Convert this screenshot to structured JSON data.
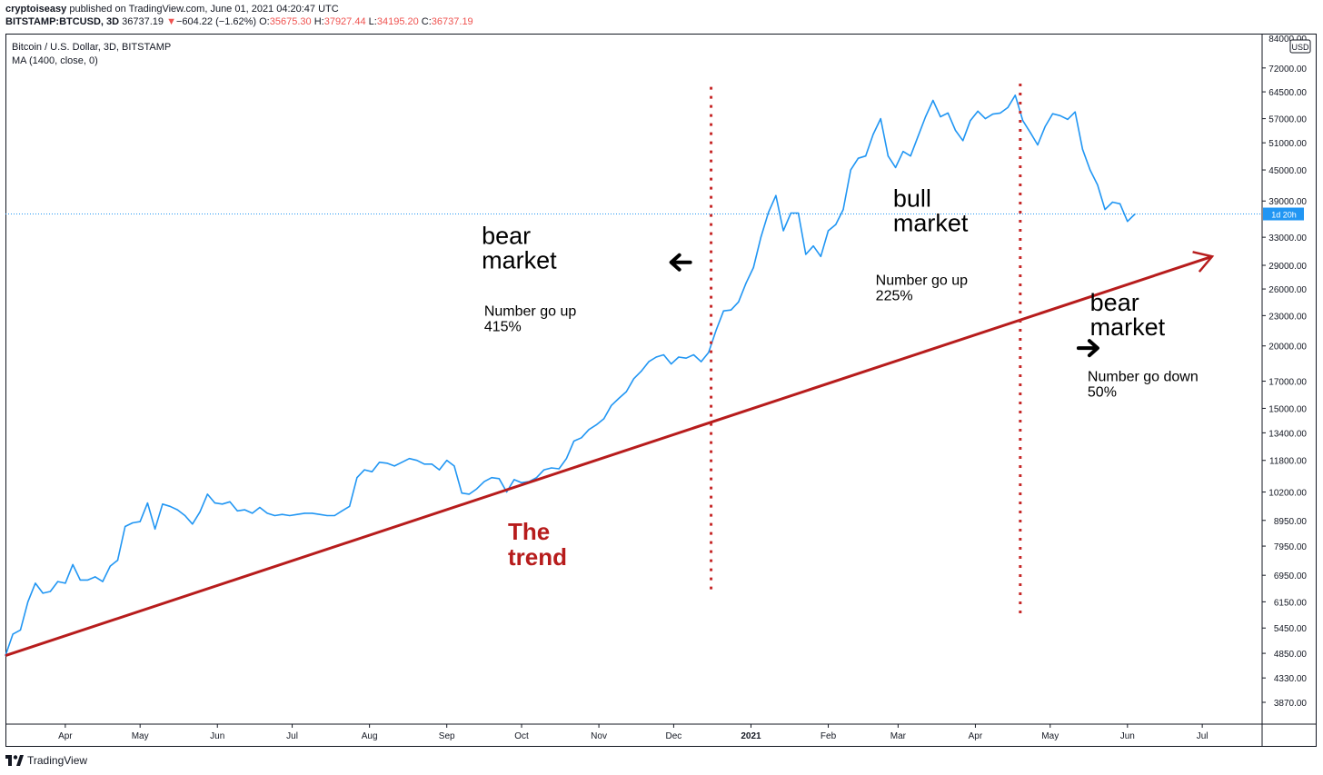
{
  "header": {
    "publisher": "cryptoiseasy",
    "published_text": "published on TradingView.com, June 01, 2021 04:20:47 UTC",
    "symbol": "BITSTAMP:BTCUSD, 3D",
    "last": "36737.19",
    "change_arrow": "▼",
    "change": "−604.22 (−1.62%)",
    "open_label": "O:",
    "open": "35675.30",
    "high_label": "H:",
    "high": "37927.44",
    "low_label": "L:",
    "low": "34195.20",
    "close_label": "C:",
    "close": "36737.19"
  },
  "legend": {
    "title": "Bitcoin / U.S. Dollar, 3D, BITSTAMP",
    "indicator": "MA (1400, close, 0)"
  },
  "price_axis": {
    "currency": "USD",
    "top_tick": "84000.00",
    "countdown": "1d 20h"
  },
  "footer": {
    "brand": "TradingView"
  },
  "colors": {
    "price_line": "#2196f3",
    "trend": "#b71c1c",
    "divider": "#c62828",
    "current_price": "#2196f3",
    "text": "#131722"
  },
  "icons": [
    "left-arrow-icon",
    "right-arrow-icon",
    "tradingview-logo-icon"
  ],
  "chart_data": {
    "type": "line",
    "yscale": "log",
    "ylim": [
      3500,
      84000
    ],
    "y_ticks": [
      72000,
      64500,
      57000,
      51000,
      45000,
      39000,
      33000,
      29000,
      26000,
      23000,
      20000,
      17000,
      15000,
      13400,
      11800,
      10200,
      8950,
      7950,
      6950,
      6150,
      5450,
      4850,
      4330,
      3870
    ],
    "y_tick_labels": [
      "72000.00",
      "64500.00",
      "57000.00",
      "51000.00",
      "45000.00",
      "39000.00",
      "33000.00",
      "29000.00",
      "26000.00",
      "23000.00",
      "20000.00",
      "17000.00",
      "15000.00",
      "13400.00",
      "11800.00",
      "10200.00",
      "8950.00",
      "7950.00",
      "6950.00",
      "6150.00",
      "5450.00",
      "4850.00",
      "4330.00",
      "3870.00"
    ],
    "x_ticks": [
      {
        "label": "Apr",
        "date": "2020-04-01",
        "bold": false
      },
      {
        "label": "May",
        "date": "2020-05-01",
        "bold": false
      },
      {
        "label": "Jun",
        "date": "2020-06-01",
        "bold": false
      },
      {
        "label": "Jul",
        "date": "2020-07-01",
        "bold": false
      },
      {
        "label": "Aug",
        "date": "2020-08-01",
        "bold": false
      },
      {
        "label": "Sep",
        "date": "2020-09-01",
        "bold": false
      },
      {
        "label": "Oct",
        "date": "2020-10-01",
        "bold": false
      },
      {
        "label": "Nov",
        "date": "2020-11-01",
        "bold": false
      },
      {
        "label": "Dec",
        "date": "2020-12-01",
        "bold": false
      },
      {
        "label": "2021",
        "date": "2021-01-01",
        "bold": true
      },
      {
        "label": "Feb",
        "date": "2021-02-01",
        "bold": false
      },
      {
        "label": "Mar",
        "date": "2021-03-01",
        "bold": false
      },
      {
        "label": "Apr",
        "date": "2021-04-01",
        "bold": false
      },
      {
        "label": "May",
        "date": "2021-05-01",
        "bold": false
      },
      {
        "label": "Jun",
        "date": "2021-06-01",
        "bold": false
      },
      {
        "label": "Jul",
        "date": "2021-07-01",
        "bold": false
      }
    ],
    "x_range": [
      "2020-03-08",
      "2021-07-25"
    ],
    "current_price": 36737.19,
    "series": [
      {
        "points": [
          [
            "2020-03-08",
            4800
          ],
          [
            "2020-03-11",
            5300
          ],
          [
            "2020-03-14",
            5400
          ],
          [
            "2020-03-17",
            6150
          ],
          [
            "2020-03-20",
            6700
          ],
          [
            "2020-03-23",
            6400
          ],
          [
            "2020-03-26",
            6450
          ],
          [
            "2020-03-29",
            6750
          ],
          [
            "2020-04-01",
            6700
          ],
          [
            "2020-04-04",
            7300
          ],
          [
            "2020-04-07",
            6800
          ],
          [
            "2020-04-10",
            6800
          ],
          [
            "2020-04-13",
            6900
          ],
          [
            "2020-04-16",
            6750
          ],
          [
            "2020-04-19",
            7250
          ],
          [
            "2020-04-22",
            7450
          ],
          [
            "2020-04-25",
            8700
          ],
          [
            "2020-04-28",
            8850
          ],
          [
            "2020-05-01",
            8900
          ],
          [
            "2020-05-04",
            9700
          ],
          [
            "2020-05-07",
            8600
          ],
          [
            "2020-05-10",
            9650
          ],
          [
            "2020-05-13",
            9550
          ],
          [
            "2020-05-16",
            9400
          ],
          [
            "2020-05-19",
            9150
          ],
          [
            "2020-05-22",
            8800
          ],
          [
            "2020-05-25",
            9300
          ],
          [
            "2020-05-28",
            10100
          ],
          [
            "2020-05-31",
            9700
          ],
          [
            "2020-06-03",
            9650
          ],
          [
            "2020-06-06",
            9750
          ],
          [
            "2020-06-09",
            9350
          ],
          [
            "2020-06-12",
            9400
          ],
          [
            "2020-06-15",
            9250
          ],
          [
            "2020-06-18",
            9500
          ],
          [
            "2020-06-21",
            9250
          ],
          [
            "2020-06-24",
            9150
          ],
          [
            "2020-06-27",
            9200
          ],
          [
            "2020-06-30",
            9150
          ],
          [
            "2020-07-03",
            9200
          ],
          [
            "2020-07-06",
            9250
          ],
          [
            "2020-07-09",
            9250
          ],
          [
            "2020-07-12",
            9200
          ],
          [
            "2020-07-15",
            9150
          ],
          [
            "2020-07-18",
            9150
          ],
          [
            "2020-07-21",
            9350
          ],
          [
            "2020-07-24",
            9550
          ],
          [
            "2020-07-27",
            10900
          ],
          [
            "2020-07-30",
            11300
          ],
          [
            "2020-08-02",
            11200
          ],
          [
            "2020-08-05",
            11700
          ],
          [
            "2020-08-08",
            11650
          ],
          [
            "2020-08-11",
            11500
          ],
          [
            "2020-08-14",
            11700
          ],
          [
            "2020-08-17",
            11900
          ],
          [
            "2020-08-20",
            11800
          ],
          [
            "2020-08-23",
            11600
          ],
          [
            "2020-08-26",
            11600
          ],
          [
            "2020-08-29",
            11300
          ],
          [
            "2020-09-01",
            11800
          ],
          [
            "2020-09-04",
            11500
          ],
          [
            "2020-09-07",
            10150
          ],
          [
            "2020-09-10",
            10100
          ],
          [
            "2020-09-13",
            10350
          ],
          [
            "2020-09-16",
            10700
          ],
          [
            "2020-09-19",
            10900
          ],
          [
            "2020-09-22",
            10850
          ],
          [
            "2020-09-25",
            10200
          ],
          [
            "2020-09-28",
            10800
          ],
          [
            "2020-10-01",
            10650
          ],
          [
            "2020-10-04",
            10700
          ],
          [
            "2020-10-07",
            10900
          ],
          [
            "2020-10-10",
            11300
          ],
          [
            "2020-10-13",
            11400
          ],
          [
            "2020-10-16",
            11350
          ],
          [
            "2020-10-19",
            11900
          ],
          [
            "2020-10-22",
            12900
          ],
          [
            "2020-10-25",
            13100
          ],
          [
            "2020-10-28",
            13600
          ],
          [
            "2020-10-31",
            13900
          ],
          [
            "2020-11-03",
            14300
          ],
          [
            "2020-11-06",
            15200
          ],
          [
            "2020-11-09",
            15700
          ],
          [
            "2020-11-12",
            16200
          ],
          [
            "2020-11-15",
            17200
          ],
          [
            "2020-11-18",
            17800
          ],
          [
            "2020-11-21",
            18600
          ],
          [
            "2020-11-24",
            19000
          ],
          [
            "2020-11-27",
            19200
          ],
          [
            "2020-11-30",
            18400
          ],
          [
            "2020-12-03",
            19000
          ],
          [
            "2020-12-06",
            18900
          ],
          [
            "2020-12-09",
            19200
          ],
          [
            "2020-12-12",
            18600
          ],
          [
            "2020-12-15",
            19400
          ],
          [
            "2020-12-18",
            21500
          ],
          [
            "2020-12-21",
            23500
          ],
          [
            "2020-12-24",
            23600
          ],
          [
            "2020-12-27",
            24500
          ],
          [
            "2020-12-30",
            26700
          ],
          [
            "2021-01-02",
            28700
          ],
          [
            "2021-01-05",
            33000
          ],
          [
            "2021-01-08",
            37000
          ],
          [
            "2021-01-11",
            40000
          ],
          [
            "2021-01-14",
            34000
          ],
          [
            "2021-01-17",
            36900
          ],
          [
            "2021-01-20",
            36900
          ],
          [
            "2021-01-23",
            30500
          ],
          [
            "2021-01-26",
            31700
          ],
          [
            "2021-01-29",
            30200
          ],
          [
            "2021-02-01",
            34000
          ],
          [
            "2021-02-04",
            35000
          ],
          [
            "2021-02-07",
            37500
          ],
          [
            "2021-02-10",
            45000
          ],
          [
            "2021-02-13",
            47500
          ],
          [
            "2021-02-16",
            48000
          ],
          [
            "2021-02-19",
            53000
          ],
          [
            "2021-02-22",
            57000
          ],
          [
            "2021-02-25",
            48000
          ],
          [
            "2021-02-28",
            45500
          ],
          [
            "2021-03-03",
            49000
          ],
          [
            "2021-03-06",
            48000
          ],
          [
            "2021-03-09",
            52500
          ],
          [
            "2021-03-12",
            57500
          ],
          [
            "2021-03-15",
            62000
          ],
          [
            "2021-03-18",
            57500
          ],
          [
            "2021-03-21",
            58500
          ],
          [
            "2021-03-24",
            54000
          ],
          [
            "2021-03-27",
            51500
          ],
          [
            "2021-03-30",
            56500
          ],
          [
            "2021-04-02",
            59000
          ],
          [
            "2021-04-05",
            57000
          ],
          [
            "2021-04-08",
            58200
          ],
          [
            "2021-04-11",
            58500
          ],
          [
            "2021-04-14",
            60000
          ],
          [
            "2021-04-17",
            63500
          ],
          [
            "2021-04-20",
            56500
          ],
          [
            "2021-04-23",
            53500
          ],
          [
            "2021-04-26",
            50500
          ],
          [
            "2021-04-29",
            55000
          ],
          [
            "2021-05-02",
            58300
          ],
          [
            "2021-05-05",
            57800
          ],
          [
            "2021-05-08",
            56800
          ],
          [
            "2021-05-11",
            58800
          ],
          [
            "2021-05-14",
            49500
          ],
          [
            "2021-05-17",
            45000
          ],
          [
            "2021-05-20",
            42000
          ],
          [
            "2021-05-23",
            37500
          ],
          [
            "2021-05-26",
            38800
          ],
          [
            "2021-05-29",
            38500
          ],
          [
            "2021-06-01",
            35500
          ],
          [
            "2021-06-04",
            36737
          ]
        ]
      }
    ],
    "trend_line": {
      "start": [
        "2020-03-08",
        4800
      ],
      "end": [
        "2021-07-25",
        30200
      ],
      "label_line1": "The",
      "label_line2": "trend"
    },
    "dividers": [
      {
        "date": "2020-12-16",
        "y_top": 66000,
        "y_bottom": 6500
      },
      {
        "date": "2021-04-19",
        "y_top": 67000,
        "y_bottom": 5800
      }
    ],
    "annotations": [
      {
        "id": "bear-left-title",
        "line1": "bear",
        "line2": "market",
        "date": "2020-09-15",
        "y": 32000
      },
      {
        "id": "bear-left-note",
        "line1": "Number go up",
        "line2": "415%",
        "date": "2020-09-16",
        "y": 23000
      },
      {
        "id": "bull-title",
        "line1": "bull",
        "line2": "market",
        "date": "2021-02-27",
        "y": 38000
      },
      {
        "id": "bull-note",
        "line1": "Number go up",
        "line2": "225%",
        "date": "2021-02-20",
        "y": 26500
      },
      {
        "id": "bear-right-title",
        "line1": "bear",
        "line2": "market",
        "date": "2021-05-17",
        "y": 23500
      },
      {
        "id": "bear-right-note",
        "line1": "Number go down",
        "line2": "50%",
        "date": "2021-05-16",
        "y": 17000
      }
    ],
    "arrows": [
      {
        "id": "left-arrow",
        "direction": "left",
        "date": "2020-12-04",
        "y": 29400
      },
      {
        "id": "right-arrow",
        "direction": "right",
        "date": "2021-05-16",
        "y": 19800
      }
    ]
  }
}
